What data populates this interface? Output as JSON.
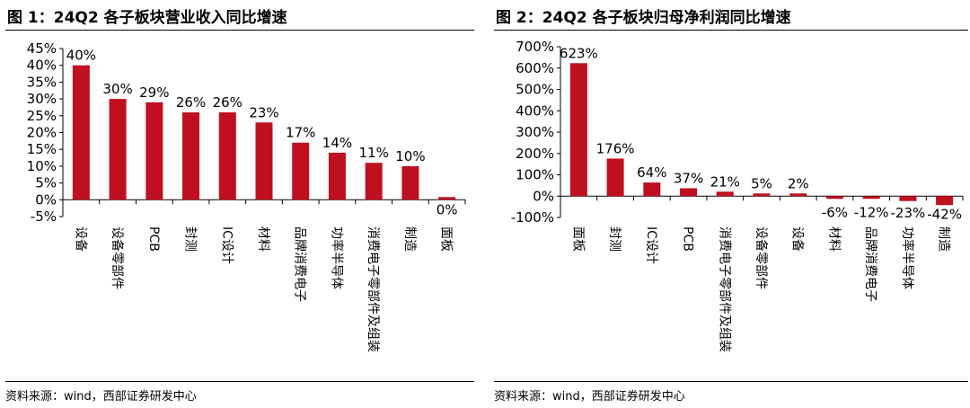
{
  "colors": {
    "bar": "#c00f1e",
    "axis": "#000000",
    "text": "#000000"
  },
  "chart_data": [
    {
      "type": "bar",
      "title": "图 1：24Q2 各子板块营业收入同比增速",
      "categories": [
        "设备",
        "设备零部件",
        "PCB",
        "封测",
        "IC设计",
        "材料",
        "品牌消费电子",
        "功率半导体",
        "消费电子零部件及组装",
        "制造",
        "面板"
      ],
      "values": [
        40,
        30,
        29,
        26,
        26,
        23,
        17,
        14,
        11,
        10,
        0
      ],
      "value_labels": [
        "40%",
        "30%",
        "29%",
        "26%",
        "26%",
        "23%",
        "17%",
        "14%",
        "11%",
        "10%",
        "0%"
      ],
      "y_ticks": [
        "45%",
        "40%",
        "35%",
        "30%",
        "25%",
        "20%",
        "15%",
        "10%",
        "5%",
        "0%",
        "-5%"
      ],
      "ylim": [
        -5,
        45
      ],
      "xlabel": "",
      "ylabel": "",
      "grid": false,
      "legend": "none",
      "source": "资料来源：wind，西部证券研发中心"
    },
    {
      "type": "bar",
      "title": "图 2：24Q2 各子板块归母净利润同比增速",
      "categories": [
        "面板",
        "封测",
        "IC设计",
        "PCB",
        "消费电子零部件及组装",
        "设备零部件",
        "设备",
        "材料",
        "品牌消费电子",
        "功率半导体",
        "制造"
      ],
      "values": [
        623,
        176,
        64,
        37,
        21,
        5,
        2,
        -6,
        -12,
        -23,
        -42
      ],
      "value_labels": [
        "623%",
        "176%",
        "64%",
        "37%",
        "21%",
        "5%",
        "2%",
        "-6%",
        "-12%",
        "-23%",
        "-42%"
      ],
      "y_ticks": [
        "700%",
        "600%",
        "500%",
        "400%",
        "300%",
        "200%",
        "100%",
        "0%",
        "-100%"
      ],
      "ylim": [
        -100,
        700
      ],
      "xlabel": "",
      "ylabel": "",
      "grid": false,
      "legend": "none",
      "source": "资料来源：wind，西部证券研发中心"
    }
  ]
}
